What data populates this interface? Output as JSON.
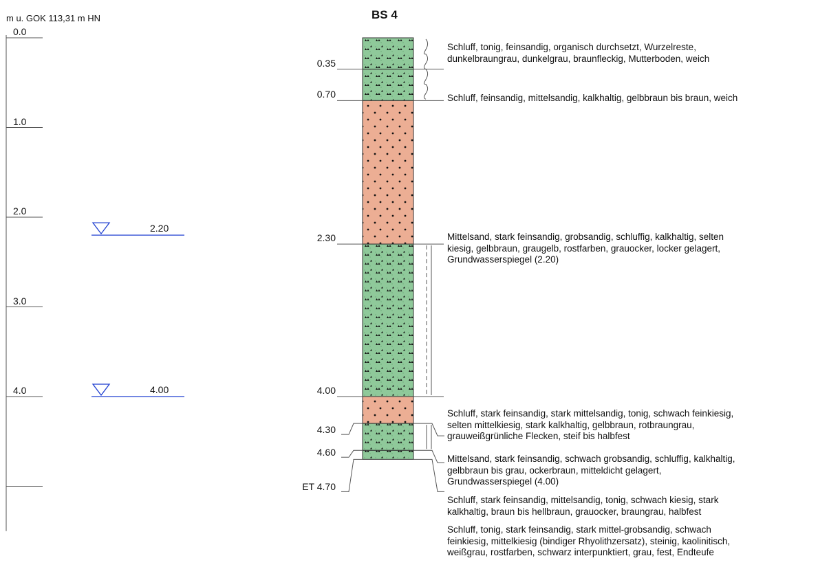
{
  "header": {
    "reference": "m u. GOK 113,31 m HN",
    "title": "BS 4"
  },
  "depth_scale": {
    "ticks": [
      "0.0",
      "1.0",
      "2.0",
      "3.0",
      "4.0"
    ]
  },
  "groundwater": [
    {
      "depth": 2.2,
      "label": "2.20"
    },
    {
      "depth": 4.0,
      "label": "4.00"
    }
  ],
  "layers": [
    {
      "top": 0.0,
      "bottom": 0.35,
      "bottom_label": "0.35",
      "soil": "silt",
      "lines": [
        "Schluff, tonig, feinsandig, organisch durchsetzt, Wurzelreste,",
        "dunkelbraungrau, dunkelgrau, braunfleckig, Mutterboden, weich"
      ]
    },
    {
      "top": 0.35,
      "bottom": 0.7,
      "bottom_label": "0.70",
      "soil": "silt",
      "lines": [
        "Schluff, feinsandig, mittelsandig, kalkhaltig, gelbbraun bis braun, weich"
      ]
    },
    {
      "top": 0.7,
      "bottom": 2.3,
      "bottom_label": "2.30",
      "soil": "sand",
      "lines": [
        "Mittelsand, stark feinsandig, grobsandig, schluffig, kalkhaltig, selten",
        "kiesig, gelbbraun, graugelb, rostfarben, grauocker, locker gelagert,",
        "Grundwasserspiegel (2.20)"
      ]
    },
    {
      "top": 2.3,
      "bottom": 4.0,
      "bottom_label": "4.00",
      "soil": "silt",
      "lines": [
        "Schluff, stark feinsandig, stark mittelsandig, tonig, schwach feinkiesig,",
        "selten mittelkiesig, stark kalkhaltig, gelbbraun, rotbraungrau,",
        "grauweißgrünliche Flecken, steif bis halbfest"
      ]
    },
    {
      "top": 4.0,
      "bottom": 4.3,
      "bottom_label": "4.30",
      "soil": "sand",
      "lines": [
        "Mittelsand, stark feinsandig, schwach grobsandig, schluffig, kalkhaltig,",
        "gelbbraun bis grau, ockerbraun, mitteldicht gelagert,",
        "Grundwasserspiegel (4.00)"
      ]
    },
    {
      "top": 4.3,
      "bottom": 4.6,
      "bottom_label": "4.60",
      "soil": "silt",
      "lines": [
        "Schluff, stark feinsandig, mittelsandig, tonig, schwach kiesig, stark",
        "kalkhaltig, braun bis hellbraun, grauocker, braungrau, halbfest"
      ]
    },
    {
      "top": 4.6,
      "bottom": 4.7,
      "bottom_label": "ET 4.70",
      "soil": "silt",
      "lines": [
        "Schluff, tonig, stark feinsandig, stark mittel-grobsandig, schwach",
        "feinkiesig, mittelkiesig (bindiger Rhyolithzersatz), steinig, kaolinitisch,",
        "weißgrau, rostfarben, schwarz interpunktiert, grau, fest, Endteufe"
      ]
    }
  ],
  "colors": {
    "silt": "#8fc99a",
    "sand": "#ecae94",
    "water": "#1f3fd0",
    "line": "#555555"
  },
  "consistency_marks": [
    {
      "top": 0.0,
      "bottom": 0.7,
      "style": "wavy",
      "meaning": "weich"
    },
    {
      "top": 2.3,
      "bottom": 4.0,
      "style": "double-dashed",
      "meaning": "steif bis halbfest"
    },
    {
      "top": 4.3,
      "bottom": 4.6,
      "style": "double-solid",
      "meaning": "halbfest"
    }
  ]
}
